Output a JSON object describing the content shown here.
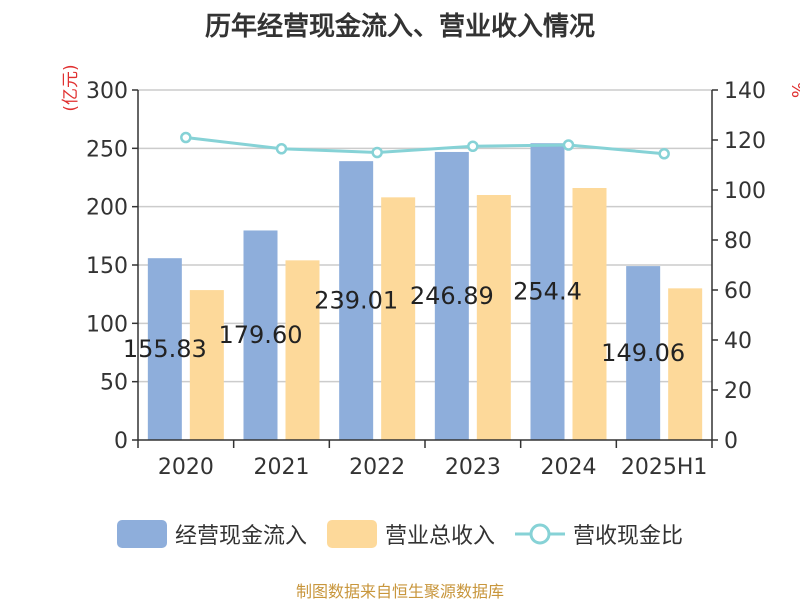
{
  "title": "历年经营现金流入、营业收入情况",
  "source": "制图数据来自恒生聚源数据库",
  "colors": {
    "cash": "#8eaedb",
    "revenue": "#fdd99a",
    "ratio": "#86d2d6",
    "unit": "#e03030"
  },
  "legend": {
    "cash": "经营现金流入",
    "revenue": "营业总收入",
    "ratio": "营收现金比"
  },
  "chart_data": {
    "type": "bar",
    "categories": [
      "2020",
      "2021",
      "2022",
      "2023",
      "2024",
      "2025H1"
    ],
    "series": [
      {
        "name": "经营现金流入",
        "type": "bar",
        "axis": "left",
        "values": [
          155.83,
          179.6,
          239.01,
          246.89,
          254.4,
          149.06
        ],
        "labels": [
          "155.83",
          "179.60",
          "239.01",
          "246.89",
          "254.4",
          "149.06"
        ]
      },
      {
        "name": "营业总收入",
        "type": "bar",
        "axis": "left",
        "values": [
          128.5,
          154.0,
          208.0,
          210.0,
          216.0,
          130.0
        ]
      },
      {
        "name": "营收现金比",
        "type": "line",
        "axis": "right",
        "values": [
          121.0,
          116.5,
          115.0,
          117.5,
          118.0,
          114.5
        ]
      }
    ],
    "left_axis": {
      "unit": "(亿元)",
      "ylim": [
        0,
        300
      ],
      "ticks": [
        0,
        50,
        100,
        150,
        200,
        250,
        300
      ]
    },
    "right_axis": {
      "unit": "%",
      "ylim": [
        0,
        140
      ],
      "ticks": [
        0,
        20,
        40,
        60,
        80,
        100,
        120,
        140
      ]
    },
    "grid": true,
    "legend_position": "bottom"
  }
}
